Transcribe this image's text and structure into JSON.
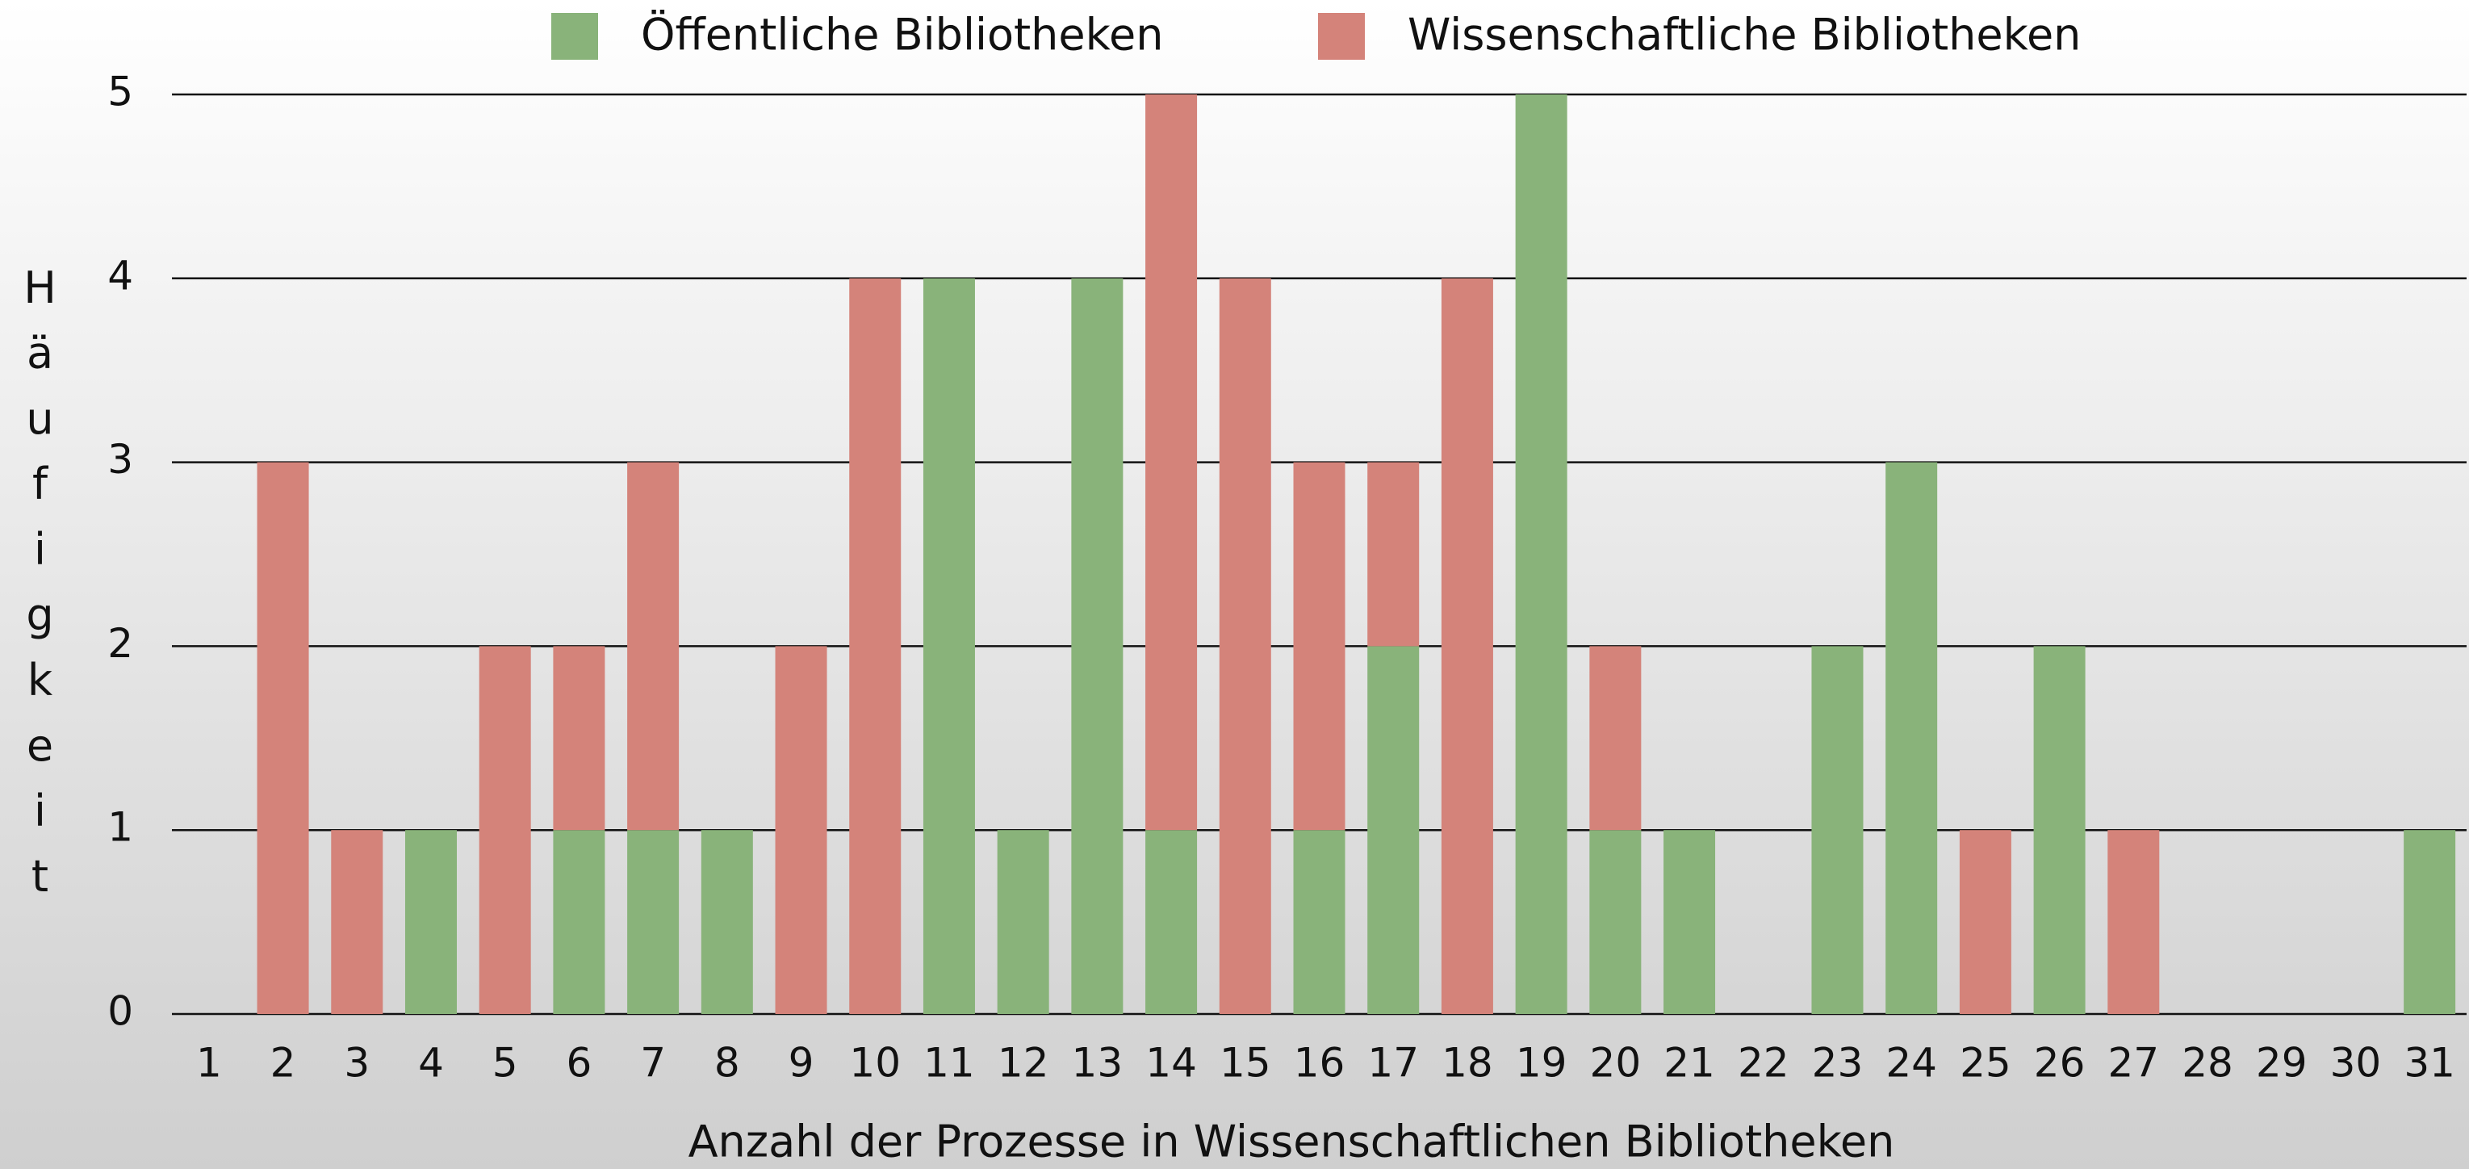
{
  "chart_data": {
    "type": "bar",
    "stacked": true,
    "x_label": "Anzahl der Prozesse in Wissenschaftlichen Bibliotheken",
    "y_label": "Häufigkeit",
    "categories": [
      "1",
      "2",
      "3",
      "4",
      "5",
      "6",
      "7",
      "8",
      "9",
      "10",
      "11",
      "12",
      "13",
      "14",
      "15",
      "16",
      "17",
      "18",
      "19",
      "20",
      "21",
      "22",
      "23",
      "24",
      "25",
      "26",
      "27",
      "28",
      "29",
      "30",
      "31"
    ],
    "series": [
      {
        "name": "Öffentliche Bibliotheken",
        "color": "#89b37a",
        "values": [
          0,
          0,
          0,
          1,
          0,
          1,
          1,
          1,
          0,
          0,
          4,
          1,
          4,
          1,
          0,
          1,
          2,
          0,
          5,
          1,
          1,
          0,
          2,
          3,
          0,
          2,
          0,
          0,
          0,
          0,
          1
        ]
      },
      {
        "name": "Wissenschaftliche Bibliotheken",
        "color": "#d4837a",
        "values": [
          0,
          3,
          1,
          0,
          2,
          1,
          2,
          0,
          2,
          4,
          0,
          0,
          0,
          4,
          4,
          2,
          1,
          4,
          0,
          1,
          0,
          0,
          0,
          0,
          1,
          0,
          1,
          0,
          0,
          0,
          0
        ]
      }
    ],
    "ylim": [
      0,
      5
    ],
    "yticks": [
      0,
      1,
      2,
      3,
      4,
      5
    ],
    "grid": true,
    "legend": "top"
  }
}
